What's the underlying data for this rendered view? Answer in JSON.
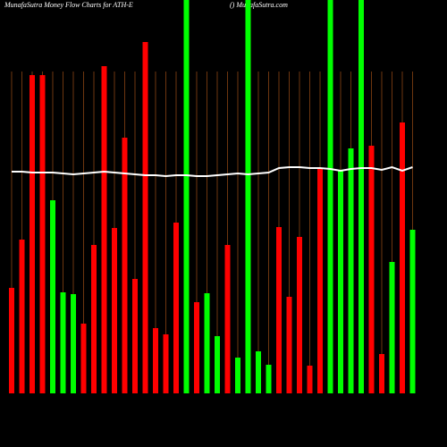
{
  "chart_data": {
    "type": "bar",
    "title": "MunafaSutra  Money Flow  Charts for ATH-E",
    "subtitle": "() MunafaSutra.com",
    "categories": [
      null,
      null,
      null,
      null,
      null,
      null,
      null,
      null,
      null,
      null,
      null,
      null,
      null,
      null,
      null,
      null,
      null,
      null,
      null,
      null,
      null,
      null,
      null,
      null,
      null,
      null,
      null,
      null,
      null,
      null,
      null,
      null,
      null,
      null,
      null,
      null,
      null,
      null,
      null,
      null
    ],
    "values": [
      118,
      172,
      356,
      356,
      216,
      113,
      111,
      78,
      166,
      366,
      185,
      286,
      128,
      393,
      73,
      66,
      191,
      460,
      102,
      112,
      64,
      166,
      40,
      460,
      47,
      32,
      186,
      108,
      175,
      31,
      252,
      460,
      250,
      274,
      460,
      277,
      44,
      147,
      303,
      183
    ],
    "colors": [
      "#ff0000",
      "#ff0000",
      "#ff0000",
      "#ff0000",
      "#00ff00",
      "#00ff00",
      "#00ff00",
      "#ff0000",
      "#ff0000",
      "#ff0000",
      "#ff0000",
      "#ff0000",
      "#ff0000",
      "#ff0000",
      "#ff0000",
      "#ff0000",
      "#ff0000",
      "#00ff00",
      "#ff0000",
      "#00ff00",
      "#00ff00",
      "#ff0000",
      "#00ff00",
      "#00ff00",
      "#00ff00",
      "#00ff00",
      "#ff0000",
      "#ff0000",
      "#ff0000",
      "#ff0000",
      "#ff0000",
      "#00ff00",
      "#00ff00",
      "#00ff00",
      "#00ff00",
      "#ff0000",
      "#ff0000",
      "#00ff00",
      "#ff0000",
      "#00ff00"
    ],
    "line": {
      "color": "#ffffff",
      "values": [
        248,
        248,
        247,
        247,
        247,
        246,
        245,
        246,
        247,
        248,
        247,
        246,
        245,
        244,
        244,
        243,
        244,
        244,
        243,
        243,
        244,
        245,
        246,
        245,
        246,
        247,
        252,
        253,
        253,
        252,
        252,
        251,
        249,
        251,
        252,
        252,
        250,
        253,
        249,
        253
      ]
    },
    "ylim": [
      0,
      440
    ]
  }
}
